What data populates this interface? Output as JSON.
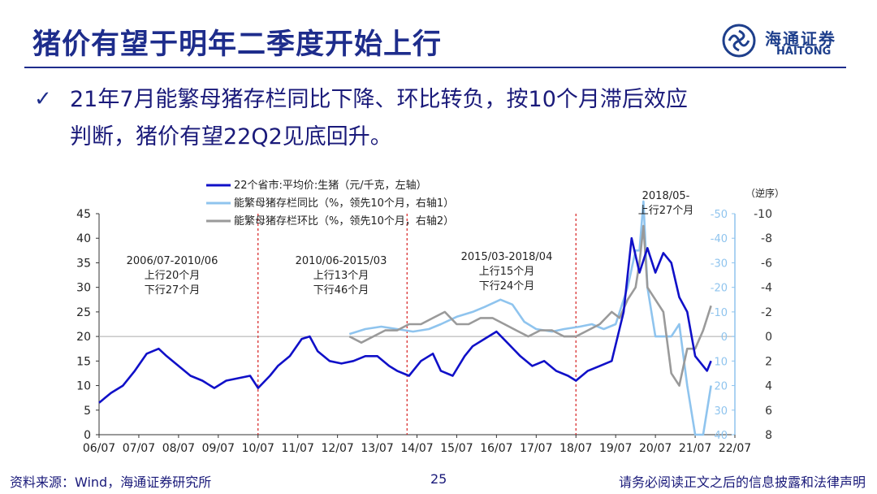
{
  "header": {
    "title": "猪价有望于明年二季度开始上行",
    "logo_cn": "海通证券",
    "logo_en": "HAITONG"
  },
  "bullet": {
    "line1": "21年7月能繁母猪存栏同比下降、环比转负，按10个月滞后效应",
    "line2": "判断，猪价有望22Q2见底回升。"
  },
  "colors": {
    "price": "#1010c8",
    "yoy": "#8fc4ee",
    "mom": "#9a9a9a",
    "accent": "#1e2d8c",
    "divider": "#d62020"
  },
  "chart_data": {
    "type": "line",
    "x_ticks": [
      "06/07",
      "07/07",
      "08/07",
      "09/07",
      "10/07",
      "11/07",
      "12/07",
      "13/07",
      "14/07",
      "15/07",
      "16/07",
      "17/07",
      "18/07",
      "19/07",
      "20/07",
      "21/07",
      "22/07"
    ],
    "left_axis": {
      "range": [
        0,
        45
      ],
      "ticks": [
        "0",
        "5",
        "10",
        "15",
        "20",
        "25",
        "30",
        "35",
        "40",
        "45"
      ]
    },
    "right_axis1": {
      "range": [
        -50,
        40
      ],
      "ticks": [
        "40",
        "30",
        "20",
        "10",
        "0",
        "-10",
        "-20",
        "-30",
        "-40",
        "-50"
      ],
      "reversed": true
    },
    "right_axis2": {
      "range": [
        -10,
        8
      ],
      "ticks": [
        "8",
        "6",
        "4",
        "2",
        "0",
        "-2",
        "-4",
        "-6",
        "-8",
        "-10"
      ],
      "reversed": true
    },
    "order_note": "（逆序）",
    "legend": [
      {
        "name": "22个省市:平均价:生猪（元/千克，左轴）",
        "color": "#1010c8"
      },
      {
        "name": "能繁母猪存栏同比（%，领先10个月，右轴1）",
        "color": "#8fc4ee"
      },
      {
        "name": "能繁母猪存栏环比（%，领先10个月，右轴2）",
        "color": "#9a9a9a"
      }
    ],
    "cycle_dividers": [
      2010.5,
      2014.25,
      2018.5
    ],
    "annotations": [
      {
        "period": "2006/07-2010/06",
        "up": "上行20个月",
        "down": "下行27个月"
      },
      {
        "period": "2010/06-2015/03",
        "up": "上行13个月",
        "down": "下行46个月"
      },
      {
        "period": "2015/03-2018/04",
        "up": "上行15个月",
        "down": "下行24个月"
      },
      {
        "period": "2018/05-",
        "up": "上行27个月",
        "down": ""
      }
    ],
    "series": [
      {
        "name": "22个省市:平均价:生猪（元/千克，左轴）",
        "axis": "left",
        "x": [
          2006.5,
          2006.8,
          2007.1,
          2007.4,
          2007.7,
          2008.0,
          2008.2,
          2008.5,
          2008.8,
          2009.1,
          2009.4,
          2009.7,
          2010.0,
          2010.3,
          2010.5,
          2010.8,
          2011.0,
          2011.3,
          2011.6,
          2011.8,
          2012.0,
          2012.3,
          2012.6,
          2012.9,
          2013.2,
          2013.5,
          2013.8,
          2014.0,
          2014.3,
          2014.6,
          2014.9,
          2015.1,
          2015.4,
          2015.7,
          2015.9,
          2016.2,
          2016.5,
          2016.8,
          2017.1,
          2017.4,
          2017.7,
          2018.0,
          2018.3,
          2018.5,
          2018.8,
          2019.1,
          2019.4,
          2019.7,
          2019.9,
          2020.1,
          2020.3,
          2020.5,
          2020.7,
          2020.9,
          2021.1,
          2021.3,
          2021.5,
          2021.8,
          2021.9
        ],
        "y": [
          6.5,
          8.5,
          10,
          13,
          16.5,
          17.5,
          16,
          14,
          12,
          11,
          9.5,
          11,
          11.5,
          12,
          9.5,
          12,
          14,
          16,
          19.5,
          20,
          17,
          15,
          14.5,
          15,
          16,
          16,
          14,
          13,
          12,
          15,
          16.5,
          13,
          12,
          16,
          18,
          19.5,
          21,
          18.5,
          16,
          14,
          15,
          13,
          12,
          11,
          13,
          14,
          15,
          25,
          40,
          33,
          38,
          33,
          37,
          35,
          28,
          25,
          16,
          13,
          15
        ]
      },
      {
        "name": "能繁母猪存栏同比（%，领先10个月，右轴1）",
        "axis": "right1",
        "x": [
          2012.8,
          2013.2,
          2013.6,
          2014.0,
          2014.4,
          2014.8,
          2015.1,
          2015.5,
          2015.9,
          2016.2,
          2016.6,
          2016.9,
          2017.2,
          2017.5,
          2017.9,
          2018.2,
          2018.6,
          2018.9,
          2019.2,
          2019.5,
          2019.8,
          2020.0,
          2020.1,
          2020.2,
          2020.3,
          2020.5,
          2020.7,
          2020.9,
          2021.1,
          2021.3,
          2021.5,
          2021.7,
          2021.9
        ],
        "y": [
          -1,
          -3,
          -4,
          -3,
          -2,
          -3,
          -5,
          -8,
          -10,
          -12,
          -15,
          -13,
          -6,
          -3,
          -2,
          -3,
          -4,
          -5,
          -3,
          -5,
          -20,
          -35,
          -35,
          -55,
          -20,
          0,
          0,
          0,
          -5,
          20,
          40,
          40,
          20
        ]
      },
      {
        "name": "能繁母猪存栏环比（%，领先10个月，右轴2）",
        "axis": "right2",
        "x": [
          2012.8,
          2013.1,
          2013.4,
          2013.7,
          2014.0,
          2014.3,
          2014.6,
          2014.9,
          2015.2,
          2015.5,
          2015.8,
          2016.1,
          2016.4,
          2016.7,
          2017.0,
          2017.3,
          2017.6,
          2017.9,
          2018.2,
          2018.5,
          2018.8,
          2019.1,
          2019.4,
          2019.6,
          2019.8,
          2020.0,
          2020.1,
          2020.2,
          2020.3,
          2020.5,
          2020.7,
          2020.9,
          2021.1,
          2021.3,
          2021.5,
          2021.7,
          2021.9
        ],
        "y": [
          0,
          0.5,
          0,
          -0.5,
          -0.5,
          -1,
          -1,
          -1.5,
          -2,
          -1,
          -1,
          -1.5,
          -1.5,
          -1,
          -0.5,
          0,
          -0.5,
          -0.5,
          0,
          0,
          -0.5,
          -1,
          -2,
          -1.5,
          -3,
          -4,
          -6,
          -9,
          -4,
          -3,
          -2,
          3,
          4,
          1,
          1,
          -0.5,
          -2.5
        ]
      }
    ]
  },
  "footer": {
    "source": "资料来源：Wind，海通证券研究所",
    "page": "25",
    "disclaimer": "请务必阅读正文之后的信息披露和法律声明"
  }
}
